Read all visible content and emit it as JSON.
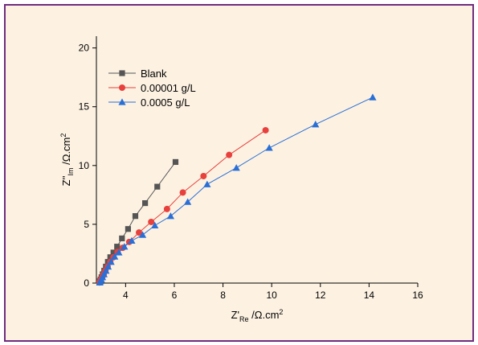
{
  "chart_data": {
    "type": "line",
    "title": "",
    "xlabel_main": "Z'",
    "xlabel_sub": "Re",
    "xlabel_unit": " /Ω.cm",
    "xlabel_sup": "2",
    "ylabel_main": "Z''",
    "ylabel_sub": "Im",
    "ylabel_unit": " /Ω.cm",
    "ylabel_sup": "2",
    "xlim": [
      2.8,
      16
    ],
    "ylim": [
      0,
      21
    ],
    "xticks": [
      4,
      6,
      8,
      10,
      12,
      14,
      16
    ],
    "yticks": [
      0,
      5,
      10,
      15,
      20
    ],
    "legend_position": "top-left",
    "grid": false,
    "series": [
      {
        "name": "Blank",
        "color": "#555555",
        "marker": "square",
        "x": [
          2.92,
          2.94,
          2.97,
          3.01,
          3.06,
          3.12,
          3.19,
          3.27,
          3.37,
          3.5,
          3.65,
          3.85,
          4.1,
          4.4,
          4.8,
          5.3,
          6.05
        ],
        "y": [
          0.05,
          0.15,
          0.3,
          0.5,
          0.75,
          1.05,
          1.4,
          1.8,
          2.2,
          2.6,
          3.1,
          3.8,
          4.6,
          5.7,
          6.8,
          8.2,
          10.3
        ]
      },
      {
        "name": "0.00001 g/L",
        "color": "#e8403c",
        "marker": "circle",
        "x": [
          2.93,
          2.95,
          2.99,
          3.04,
          3.1,
          3.17,
          3.26,
          3.37,
          3.5,
          3.67,
          3.88,
          4.15,
          4.55,
          5.05,
          5.7,
          6.35,
          7.2,
          8.25,
          9.75
        ],
        "y": [
          0.05,
          0.15,
          0.3,
          0.5,
          0.75,
          1.05,
          1.4,
          1.8,
          2.2,
          2.65,
          3.0,
          3.5,
          4.3,
          5.2,
          6.3,
          7.7,
          9.1,
          10.9,
          13.0
        ]
      },
      {
        "name": "0.0005 g/L",
        "color": "#2a6fd6",
        "marker": "triangle",
        "x": [
          2.94,
          2.96,
          3.0,
          3.05,
          3.11,
          3.19,
          3.28,
          3.4,
          3.55,
          3.72,
          3.95,
          4.25,
          4.7,
          5.2,
          5.85,
          6.55,
          7.35,
          8.55,
          9.9,
          11.8,
          14.15
        ],
        "y": [
          0.05,
          0.15,
          0.3,
          0.5,
          0.75,
          1.05,
          1.4,
          1.8,
          2.25,
          2.6,
          3.1,
          3.6,
          4.1,
          4.9,
          5.7,
          6.9,
          8.4,
          9.8,
          11.5,
          13.5,
          15.8
        ]
      }
    ]
  }
}
